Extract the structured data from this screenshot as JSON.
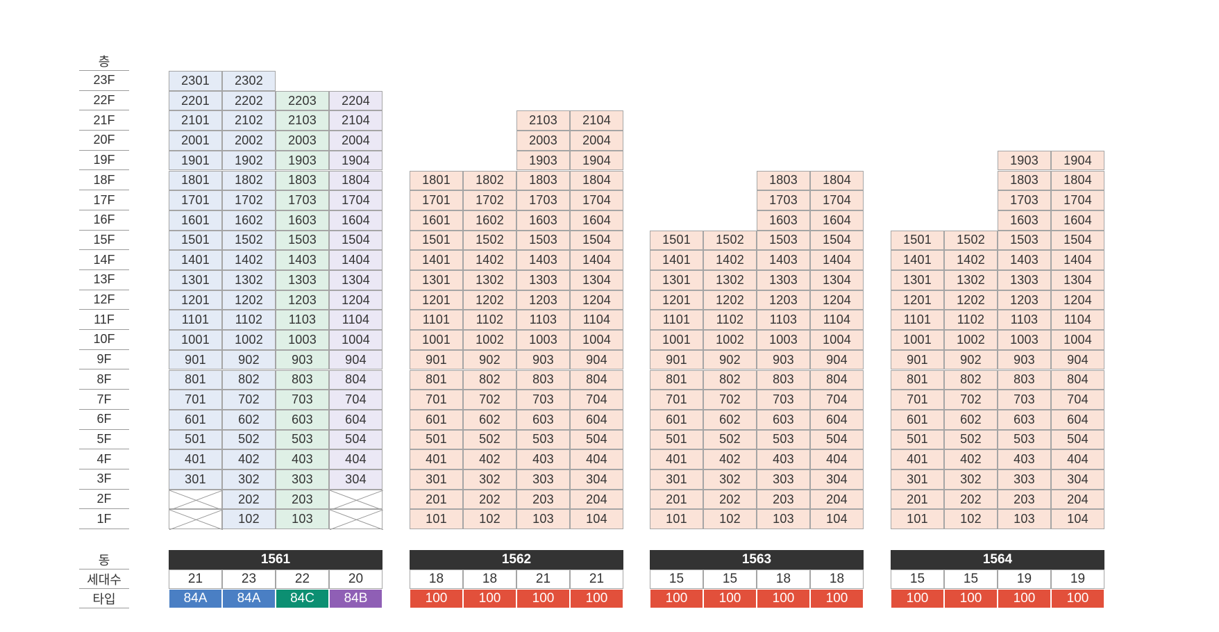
{
  "row_labels": {
    "floor_header": "층",
    "building_header": "동",
    "households_header": "세대수",
    "type_header": "타입"
  },
  "floors": [
    "23F",
    "22F",
    "21F",
    "20F",
    "19F",
    "18F",
    "17F",
    "16F",
    "15F",
    "14F",
    "13F",
    "12F",
    "11F",
    "10F",
    "9F",
    "8F",
    "7F",
    "6F",
    "5F",
    "4F",
    "3F",
    "2F",
    "1F"
  ],
  "colors": {
    "84A": "#4a7fc4",
    "84C": "#0c8f72",
    "84B": "#8f5fb5",
    "100": "#e2503b",
    "fill_84A": "#e4ebf6",
    "fill_84C": "#dff0e6",
    "fill_84B": "#ebe8f5",
    "fill_100": "#fbe3d8",
    "header_bg": "#333333"
  },
  "buildings": [
    {
      "name": "1561",
      "lines": [
        {
          "line": "01",
          "top": 23,
          "bottom": 3,
          "empty": [
            2,
            1
          ],
          "households": "21",
          "type": "84A"
        },
        {
          "line": "02",
          "top": 23,
          "bottom": 1,
          "empty": [],
          "households": "23",
          "type": "84A"
        },
        {
          "line": "03",
          "top": 22,
          "bottom": 1,
          "empty": [],
          "households": "22",
          "type": "84C"
        },
        {
          "line": "04",
          "top": 22,
          "bottom": 3,
          "empty": [
            2,
            1
          ],
          "households": "20",
          "type": "84B"
        }
      ]
    },
    {
      "name": "1562",
      "lines": [
        {
          "line": "01",
          "top": 18,
          "bottom": 1,
          "empty": [],
          "households": "18",
          "type": "100"
        },
        {
          "line": "02",
          "top": 18,
          "bottom": 1,
          "empty": [],
          "households": "18",
          "type": "100"
        },
        {
          "line": "03",
          "top": 21,
          "bottom": 1,
          "empty": [],
          "households": "21",
          "type": "100"
        },
        {
          "line": "04",
          "top": 21,
          "bottom": 1,
          "empty": [],
          "households": "21",
          "type": "100"
        }
      ]
    },
    {
      "name": "1563",
      "lines": [
        {
          "line": "01",
          "top": 15,
          "bottom": 1,
          "empty": [],
          "households": "15",
          "type": "100"
        },
        {
          "line": "02",
          "top": 15,
          "bottom": 1,
          "empty": [],
          "households": "15",
          "type": "100"
        },
        {
          "line": "03",
          "top": 18,
          "bottom": 1,
          "empty": [],
          "households": "18",
          "type": "100"
        },
        {
          "line": "04",
          "top": 18,
          "bottom": 1,
          "empty": [],
          "households": "18",
          "type": "100"
        }
      ]
    },
    {
      "name": "1564",
      "lines": [
        {
          "line": "01",
          "top": 15,
          "bottom": 1,
          "empty": [],
          "households": "15",
          "type": "100"
        },
        {
          "line": "02",
          "top": 15,
          "bottom": 1,
          "empty": [],
          "households": "15",
          "type": "100"
        },
        {
          "line": "03",
          "top": 19,
          "bottom": 1,
          "empty": [],
          "households": "19",
          "type": "100"
        },
        {
          "line": "04",
          "top": 19,
          "bottom": 1,
          "empty": [],
          "households": "19",
          "type": "100"
        }
      ]
    }
  ]
}
